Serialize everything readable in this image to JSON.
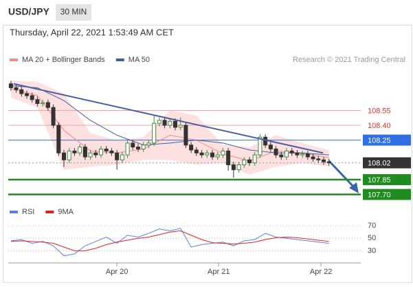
{
  "header": {
    "symbol": "USD/JPY",
    "interval": "30 MIN",
    "timestamp": "Thursday, April 22, 2021 1:53:49 AM CET"
  },
  "chart_data": [
    {
      "type": "candlestick",
      "source": "Research © 2021 Trading Central",
      "xlim": [
        -0.5,
        66
      ],
      "ylim": [
        107.62,
        108.86
      ],
      "xticks": [
        {
          "value": 20,
          "label": "Apr 20"
        },
        {
          "value": 39.2,
          "label": "Apr 21"
        },
        {
          "value": 58.5,
          "label": "Apr 22"
        }
      ],
      "up_color": "#3d8b3d",
      "down_color": "#333333",
      "open": [
        108.82,
        108.78,
        108.76,
        108.72,
        108.7,
        108.66,
        108.62,
        108.63,
        108.58,
        108.4,
        108.12,
        108.05,
        108.14,
        108.12,
        108.18,
        108.08,
        108.12,
        108.1,
        108.16,
        108.14,
        108.12,
        108.05,
        108.1,
        108.22,
        108.18,
        108.16,
        108.2,
        108.22,
        108.42,
        108.45,
        108.4,
        108.44,
        108.38,
        108.4,
        108.2,
        108.15,
        108.12,
        108.1,
        108.12,
        108.08,
        108.1,
        108.14,
        108.0,
        107.95,
        108.0,
        108.05,
        108.02,
        108.1,
        108.28,
        108.2,
        108.16,
        108.1,
        108.08,
        108.14,
        108.12,
        108.1,
        108.11,
        108.08,
        108.06,
        108.05,
        108.03
      ],
      "high": [
        108.85,
        108.81,
        108.79,
        108.75,
        108.73,
        108.69,
        108.66,
        108.66,
        108.61,
        108.43,
        108.15,
        108.17,
        108.17,
        108.21,
        108.21,
        108.15,
        108.15,
        108.19,
        108.19,
        108.17,
        108.15,
        108.13,
        108.25,
        108.25,
        108.21,
        108.23,
        108.25,
        108.5,
        108.48,
        108.48,
        108.47,
        108.47,
        108.48,
        108.43,
        108.23,
        108.18,
        108.15,
        108.15,
        108.15,
        108.13,
        108.17,
        108.17,
        108.03,
        108.03,
        108.08,
        108.08,
        108.13,
        108.31,
        108.31,
        108.23,
        108.19,
        108.13,
        108.17,
        108.17,
        108.15,
        108.14,
        108.14,
        108.11,
        108.09,
        108.08,
        108.06
      ],
      "low": [
        108.75,
        108.73,
        108.69,
        108.67,
        108.63,
        108.59,
        108.59,
        108.55,
        108.37,
        108.09,
        107.98,
        108.02,
        108.09,
        108.09,
        108.05,
        108.05,
        108.07,
        108.07,
        108.11,
        108.09,
        107.95,
        108.02,
        108.07,
        108.15,
        108.13,
        108.13,
        108.17,
        108.19,
        108.39,
        108.37,
        108.37,
        108.35,
        108.35,
        108.17,
        108.12,
        108.09,
        108.07,
        108.07,
        108.05,
        108.05,
        108.07,
        107.94,
        107.87,
        107.92,
        107.97,
        107.99,
        107.99,
        108.07,
        108.17,
        108.13,
        108.07,
        108.05,
        108.05,
        108.09,
        108.07,
        108.07,
        108.05,
        108.03,
        108.02,
        108.0,
        107.99
      ],
      "close": [
        108.78,
        108.76,
        108.72,
        108.7,
        108.66,
        108.62,
        108.63,
        108.58,
        108.4,
        108.12,
        108.05,
        108.14,
        108.12,
        108.18,
        108.08,
        108.12,
        108.1,
        108.16,
        108.14,
        108.12,
        108.05,
        108.1,
        108.22,
        108.18,
        108.16,
        108.2,
        108.22,
        108.42,
        108.45,
        108.4,
        108.44,
        108.38,
        108.4,
        108.2,
        108.15,
        108.12,
        108.1,
        108.12,
        108.08,
        108.1,
        108.14,
        108.0,
        107.95,
        108.0,
        108.05,
        108.02,
        108.1,
        108.28,
        108.2,
        108.16,
        108.1,
        108.08,
        108.14,
        108.12,
        108.1,
        108.11,
        108.08,
        108.06,
        108.05,
        108.03,
        108.02
      ],
      "overlay_x": [
        0,
        5,
        10,
        15,
        20,
        25,
        30,
        35,
        40,
        45,
        50,
        55,
        60
      ],
      "series": [
        {
          "name": "MA 20 + Bollinger Bands",
          "color": "#f28b8b",
          "band_color": "#fde0e0",
          "values": [
            108.77,
            108.7,
            108.35,
            108.14,
            108.12,
            108.16,
            108.3,
            108.25,
            108.11,
            108.04,
            108.14,
            108.12,
            108.07
          ],
          "upper": [
            108.85,
            108.84,
            108.72,
            108.32,
            108.25,
            108.28,
            108.55,
            108.5,
            108.2,
            108.18,
            108.3,
            108.22,
            108.15
          ],
          "lower": [
            108.68,
            108.58,
            107.95,
            107.98,
            108.0,
            108.05,
            108.05,
            108.0,
            108.02,
            107.9,
            107.98,
            108.02,
            107.98
          ]
        },
        {
          "name": "MA 50",
          "color": "#3f5f9f",
          "values": [
            108.8,
            108.78,
            108.65,
            108.45,
            108.3,
            108.2,
            108.22,
            108.25,
            108.22,
            108.15,
            108.12,
            108.12,
            108.1
          ]
        }
      ],
      "trendline": {
        "x": [
          0.54,
          58.9
        ],
        "y": [
          108.82,
          108.12
        ],
        "color": "#4a5f9e"
      },
      "levels": [
        {
          "value": 108.55,
          "label": "108.55",
          "color": "#f4a0a0",
          "style": "text"
        },
        {
          "value": 108.4,
          "label": "108.40",
          "color": "#f4a0a0",
          "style": "text"
        },
        {
          "value": 108.25,
          "label": "108.25",
          "color": "#2f6fe4",
          "style": "box"
        },
        {
          "value": 108.02,
          "label": "108.02",
          "color": "#333333",
          "style": "dotted"
        },
        {
          "value": 107.85,
          "label": "107.85",
          "color": "#1e8c1e",
          "style": "box"
        },
        {
          "value": 107.7,
          "label": "107.70",
          "color": "#1e8c1e",
          "style": "box"
        }
      ]
    },
    {
      "type": "line",
      "xlim": [
        -0.5,
        66
      ],
      "ylim": [
        15,
        79
      ],
      "yticks": [
        30,
        50,
        70
      ],
      "x": [
        0,
        2,
        4,
        6,
        8,
        10,
        12,
        14,
        16,
        18,
        20,
        22,
        24,
        26,
        28,
        30,
        32,
        34,
        36,
        38,
        40,
        42,
        44,
        46,
        48,
        50,
        52,
        54,
        56,
        58,
        60
      ],
      "series": [
        {
          "name": "RSI",
          "color": "#5b7fe0",
          "values": [
            46,
            48,
            42,
            45,
            38,
            22,
            25,
            38,
            45,
            52,
            42,
            55,
            52,
            58,
            65,
            62,
            66,
            36,
            40,
            42,
            44,
            38,
            46,
            48,
            58,
            52,
            50,
            48,
            46,
            44,
            42
          ]
        },
        {
          "name": "9MA",
          "color": "#e02020",
          "values": [
            45,
            46,
            45,
            44,
            42,
            36,
            30,
            30,
            34,
            40,
            44,
            47,
            50,
            52,
            56,
            60,
            62,
            55,
            48,
            43,
            42,
            41,
            42,
            44,
            48,
            51,
            52,
            51,
            49,
            47,
            45
          ]
        }
      ]
    }
  ]
}
